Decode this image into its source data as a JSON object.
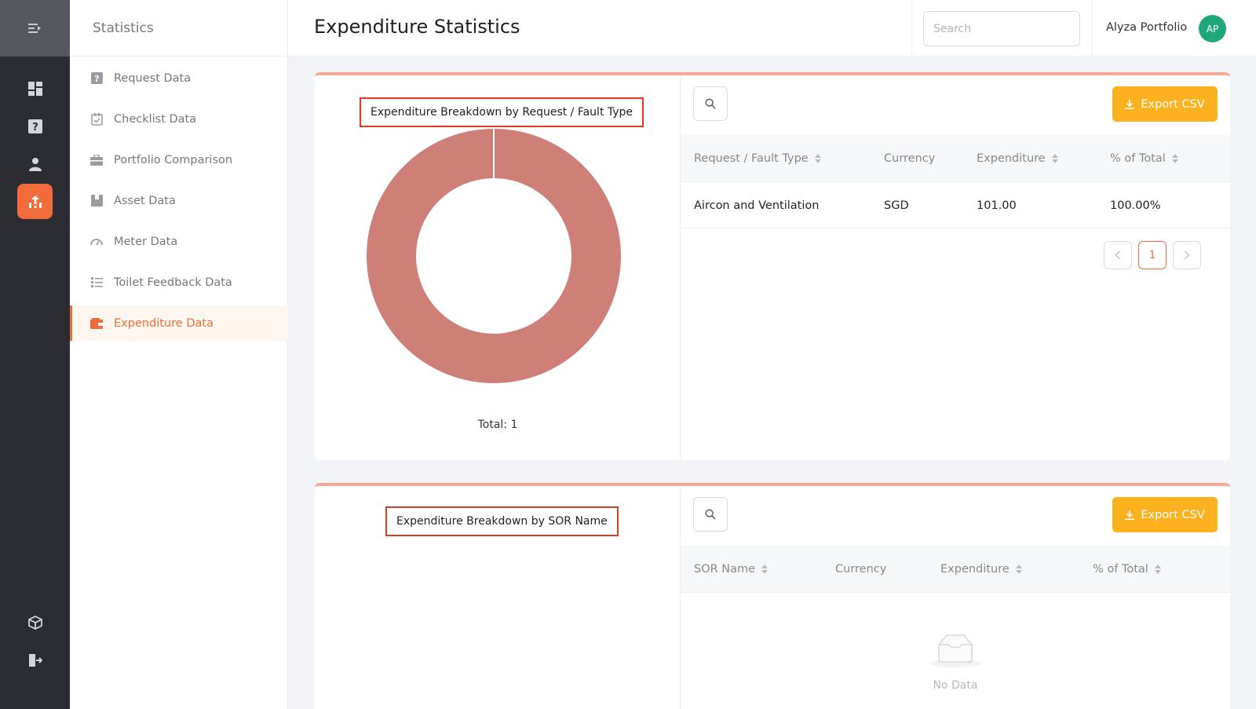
{
  "sidebar": {
    "section_title": "Statistics",
    "items": [
      {
        "label": "Request Data",
        "icon": "question-square-icon"
      },
      {
        "label": "Checklist Data",
        "icon": "checklist-icon"
      },
      {
        "label": "Portfolio Comparison",
        "icon": "briefcase-icon"
      },
      {
        "label": "Asset Data",
        "icon": "box-icon"
      },
      {
        "label": "Meter Data",
        "icon": "gauge-icon"
      },
      {
        "label": "Toilet Feedback Data",
        "icon": "list-icon"
      },
      {
        "label": "Expenditure Data",
        "icon": "wallet-icon",
        "active": true
      }
    ]
  },
  "header": {
    "title": "Expenditure Statistics",
    "search_placeholder": "Search",
    "user_name": "Alyza Portfolio",
    "avatar_initials": "AP"
  },
  "cards": [
    {
      "chart_title": "Expenditure Breakdown by Request / Fault Type",
      "total_label": "Total: 1",
      "export_label": "Export CSV",
      "columns": [
        "Request / Fault Type",
        "Currency",
        "Expenditure",
        "% of Total"
      ],
      "rows": [
        [
          "Aircon and Ventilation",
          "SGD",
          "101.00",
          "100.00%"
        ]
      ],
      "pagination": {
        "current_page": "1"
      }
    },
    {
      "chart_title": "Expenditure Breakdown by SOR Name",
      "export_label": "Export CSV",
      "columns": [
        "SOR Name",
        "Currency",
        "Expenditure",
        "% of Total"
      ],
      "rows": [],
      "empty_text": "No Data"
    }
  ],
  "chart_data": {
    "type": "pie",
    "categories": [
      "Aircon and Ventilation"
    ],
    "values": [
      101.0
    ],
    "colors": [
      "#cd7f78"
    ],
    "title": "Expenditure Breakdown by Request / Fault Type"
  },
  "colors": {
    "accent": "#f26b3a",
    "export_button": "#fcb21f",
    "card_top_border": "#f7a893",
    "avatar": "#1fa67a",
    "highlight_box": "#e03a22"
  }
}
